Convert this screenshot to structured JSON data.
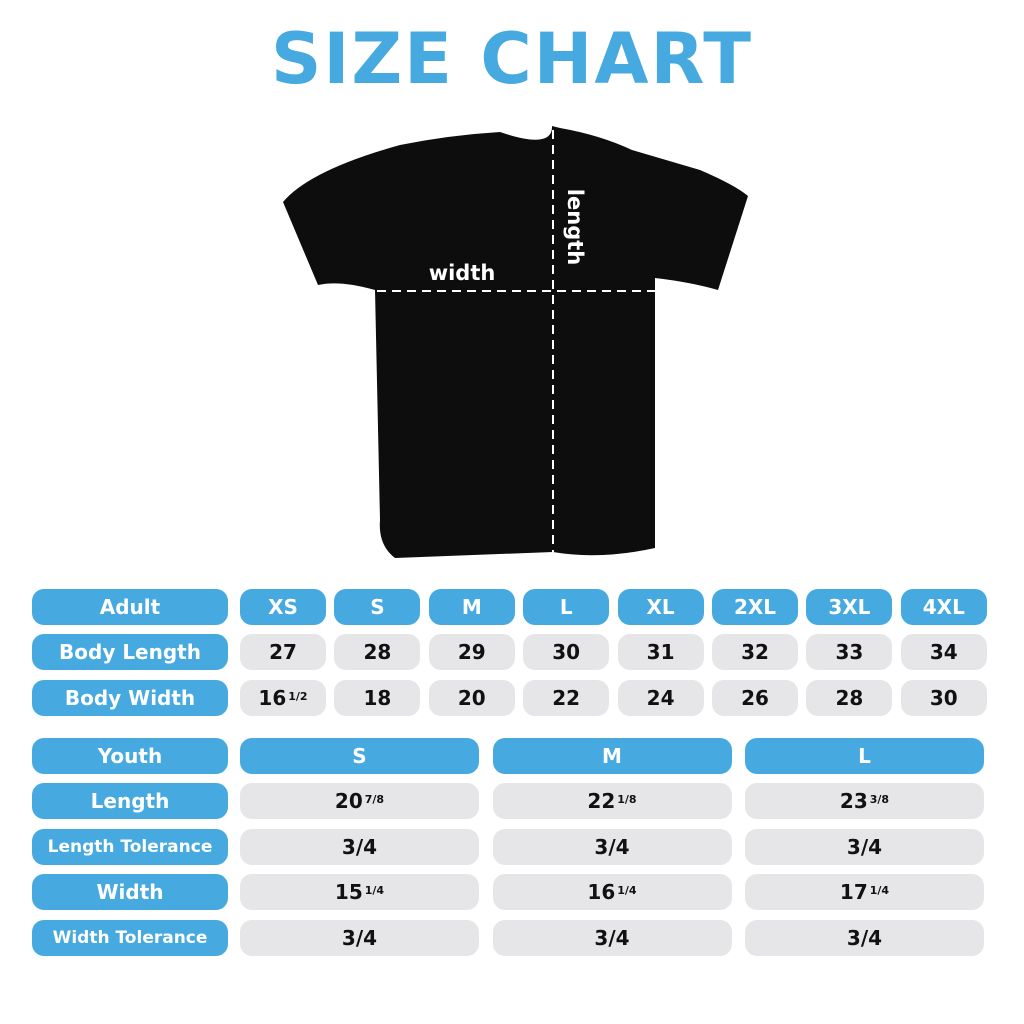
{
  "title": "SIZE CHART",
  "diagram": {
    "width_label": "width",
    "length_label": "length"
  },
  "colors": {
    "accent": "#46a9df",
    "cell": "#e6e6e8",
    "shirt": "#0d0d0d"
  },
  "adult": {
    "header": "Adult",
    "sizes": [
      "XS",
      "S",
      "M",
      "L",
      "XL",
      "2XL",
      "3XL",
      "4XL"
    ],
    "rows": [
      {
        "label": "Body Length",
        "values": [
          [
            "27",
            ""
          ],
          [
            "28",
            ""
          ],
          [
            "29",
            ""
          ],
          [
            "30",
            ""
          ],
          [
            "31",
            ""
          ],
          [
            "32",
            ""
          ],
          [
            "33",
            ""
          ],
          [
            "34",
            ""
          ]
        ]
      },
      {
        "label": "Body Width",
        "values": [
          [
            "16",
            "1/2"
          ],
          [
            "18",
            ""
          ],
          [
            "20",
            ""
          ],
          [
            "22",
            ""
          ],
          [
            "24",
            ""
          ],
          [
            "26",
            ""
          ],
          [
            "28",
            ""
          ],
          [
            "30",
            ""
          ]
        ]
      }
    ]
  },
  "youth": {
    "header": "Youth",
    "sizes": [
      "S",
      "M",
      "L"
    ],
    "rows": [
      {
        "label": "Length",
        "values": [
          [
            "20",
            "7/8"
          ],
          [
            "22",
            "1/8"
          ],
          [
            "23",
            "3/8"
          ]
        ]
      },
      {
        "label": "Length Tolerance",
        "values": [
          [
            "3/4",
            ""
          ],
          [
            "3/4",
            ""
          ],
          [
            "3/4",
            ""
          ]
        ]
      },
      {
        "label": "Width",
        "values": [
          [
            "15",
            "1/4"
          ],
          [
            "16",
            "1/4"
          ],
          [
            "17",
            "1/4"
          ]
        ]
      },
      {
        "label": "Width Tolerance",
        "values": [
          [
            "3/4",
            ""
          ],
          [
            "3/4",
            ""
          ],
          [
            "3/4",
            ""
          ]
        ]
      }
    ]
  }
}
